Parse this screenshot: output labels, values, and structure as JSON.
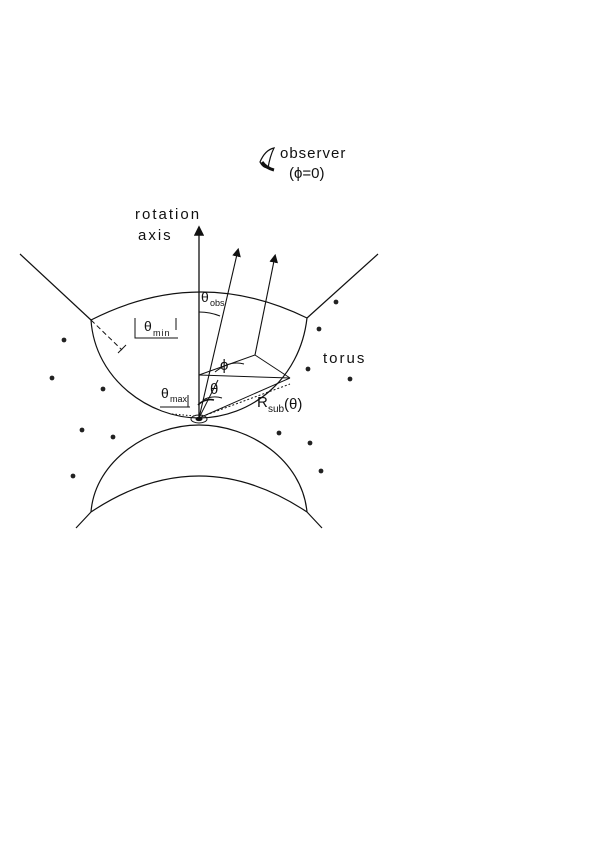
{
  "labels": {
    "observer_line1": "observer",
    "observer_line2": "(ϕ=0)",
    "axis_line1": "rotation",
    "axis_line2": "axis",
    "torus": "torus",
    "theta_obs": "θ",
    "theta_obs_sub": "obs",
    "theta_min": "θ",
    "theta_min_sub": "min",
    "theta_max": "θ",
    "theta_max_sub": "max",
    "phi": "ϕ",
    "theta": "θ",
    "rsub": "R",
    "rsub_sub": "sub",
    "rsub_arg": "(θ)"
  },
  "colors": {
    "ink": "#111111"
  },
  "icons": {
    "observer": "eye-icon"
  }
}
